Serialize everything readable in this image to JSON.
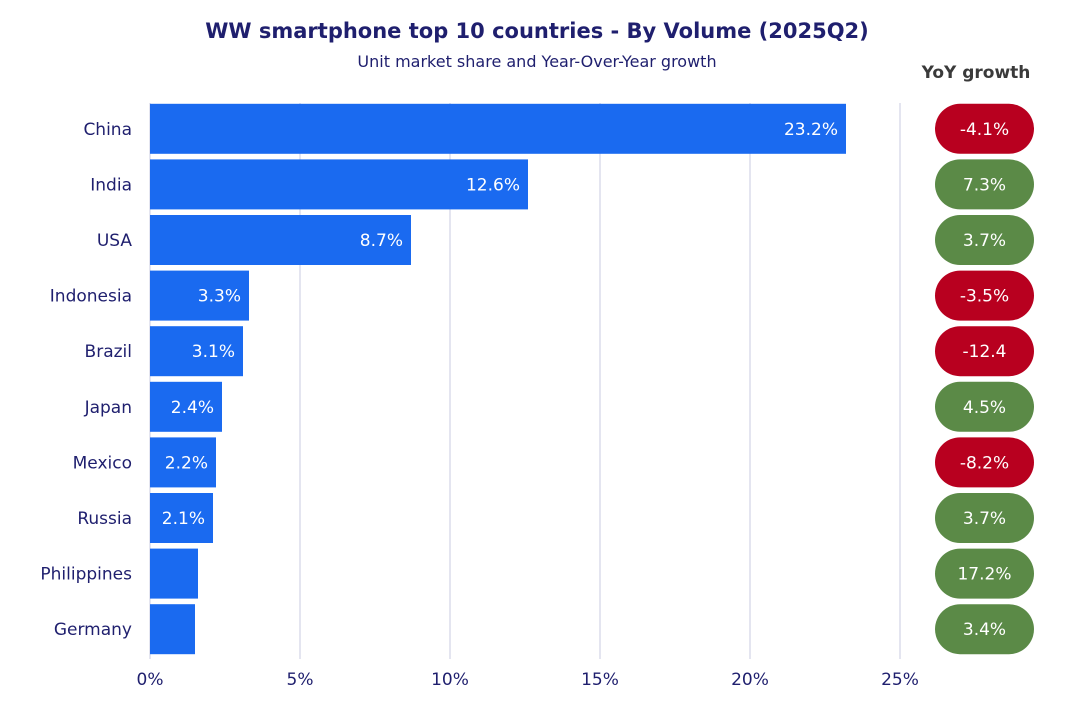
{
  "chart_data": {
    "type": "bar",
    "orientation": "horizontal",
    "title": "WW smartphone top 10 countries - By Volume (2025Q2)",
    "subtitle": "Unit market share and Year-Over-Year growth",
    "categories": [
      "China",
      "India",
      "USA",
      "Indonesia",
      "Brazil",
      "Japan",
      "Mexico",
      "Russia",
      "Philippines",
      "Germany"
    ],
    "series": [
      {
        "values": [
          23.2,
          12.6,
          8.7,
          3.3,
          3.1,
          2.4,
          2.2,
          2.1,
          1.6,
          1.5
        ]
      }
    ],
    "data_labels": [
      "23.2%",
      "12.6%",
      "8.7%",
      "3.3%",
      "3.1%",
      "2.4%",
      "2.2%",
      "2.1%",
      "",
      ""
    ],
    "xlim": [
      0,
      25
    ],
    "x_ticks": [
      0,
      5,
      10,
      15,
      20,
      25
    ],
    "x_tick_labels": [
      "0%",
      "5%",
      "10%",
      "15%",
      "20%",
      "25%"
    ],
    "grid": "vertical",
    "yoy": {
      "header": "YoY growth",
      "values": [
        -4.1,
        7.3,
        3.7,
        -3.5,
        -12.4,
        4.5,
        -8.2,
        3.7,
        17.2,
        3.4
      ],
      "labels": [
        "-4.1%",
        "7.3%",
        "3.7%",
        "-3.5%",
        "-12.4",
        "4.5%",
        "-8.2%",
        "3.7%",
        "17.2%",
        "3.4%"
      ]
    },
    "colors": {
      "bar": "#1a6af0",
      "positive": "#5b8a47",
      "negative": "#b8001f",
      "title": "#1f1f6e",
      "grid": "#c9cbe0"
    }
  }
}
